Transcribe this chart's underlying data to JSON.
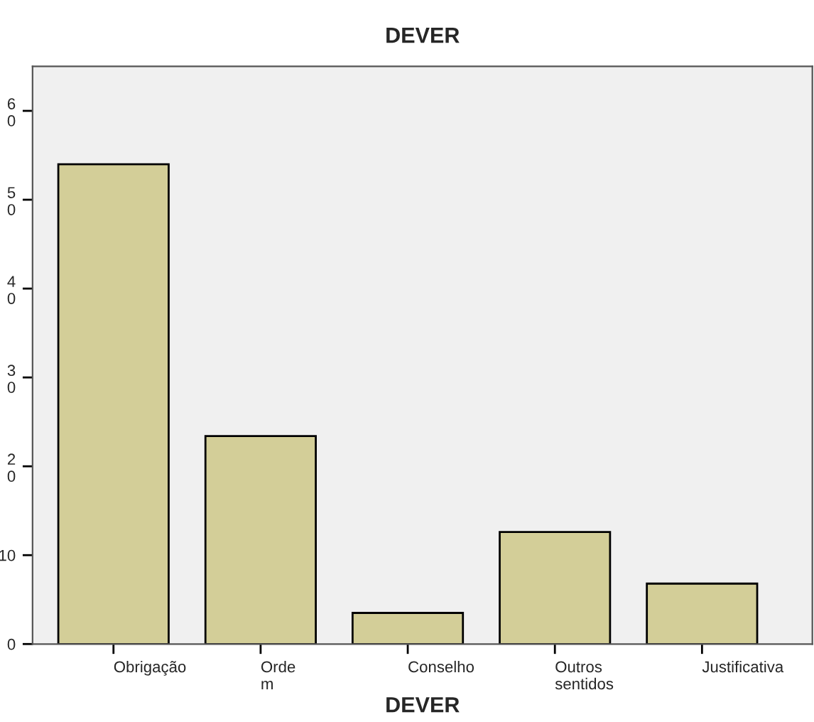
{
  "chart_data": {
    "type": "bar",
    "title": "DEVER",
    "xlabel": "DEVER",
    "categories": [
      "Obrigação",
      "Orde\nm",
      "Conselho",
      "Outros\nsentidos",
      "Justificativa"
    ],
    "values": [
      54,
      23.4,
      3.5,
      12.6,
      6.8
    ],
    "color": "#d3ce98",
    "ylim": [
      0,
      65
    ],
    "yticks": [
      0,
      10,
      {
        "value": 20,
        "label": "2\n0"
      },
      {
        "value": 30,
        "label": "3\n0"
      },
      {
        "value": 40,
        "label": "4\n0"
      },
      {
        "value": 50,
        "label": "5\n0"
      },
      {
        "value": 60,
        "label": "6\n0"
      }
    ],
    "grid": false,
    "legend": false
  }
}
